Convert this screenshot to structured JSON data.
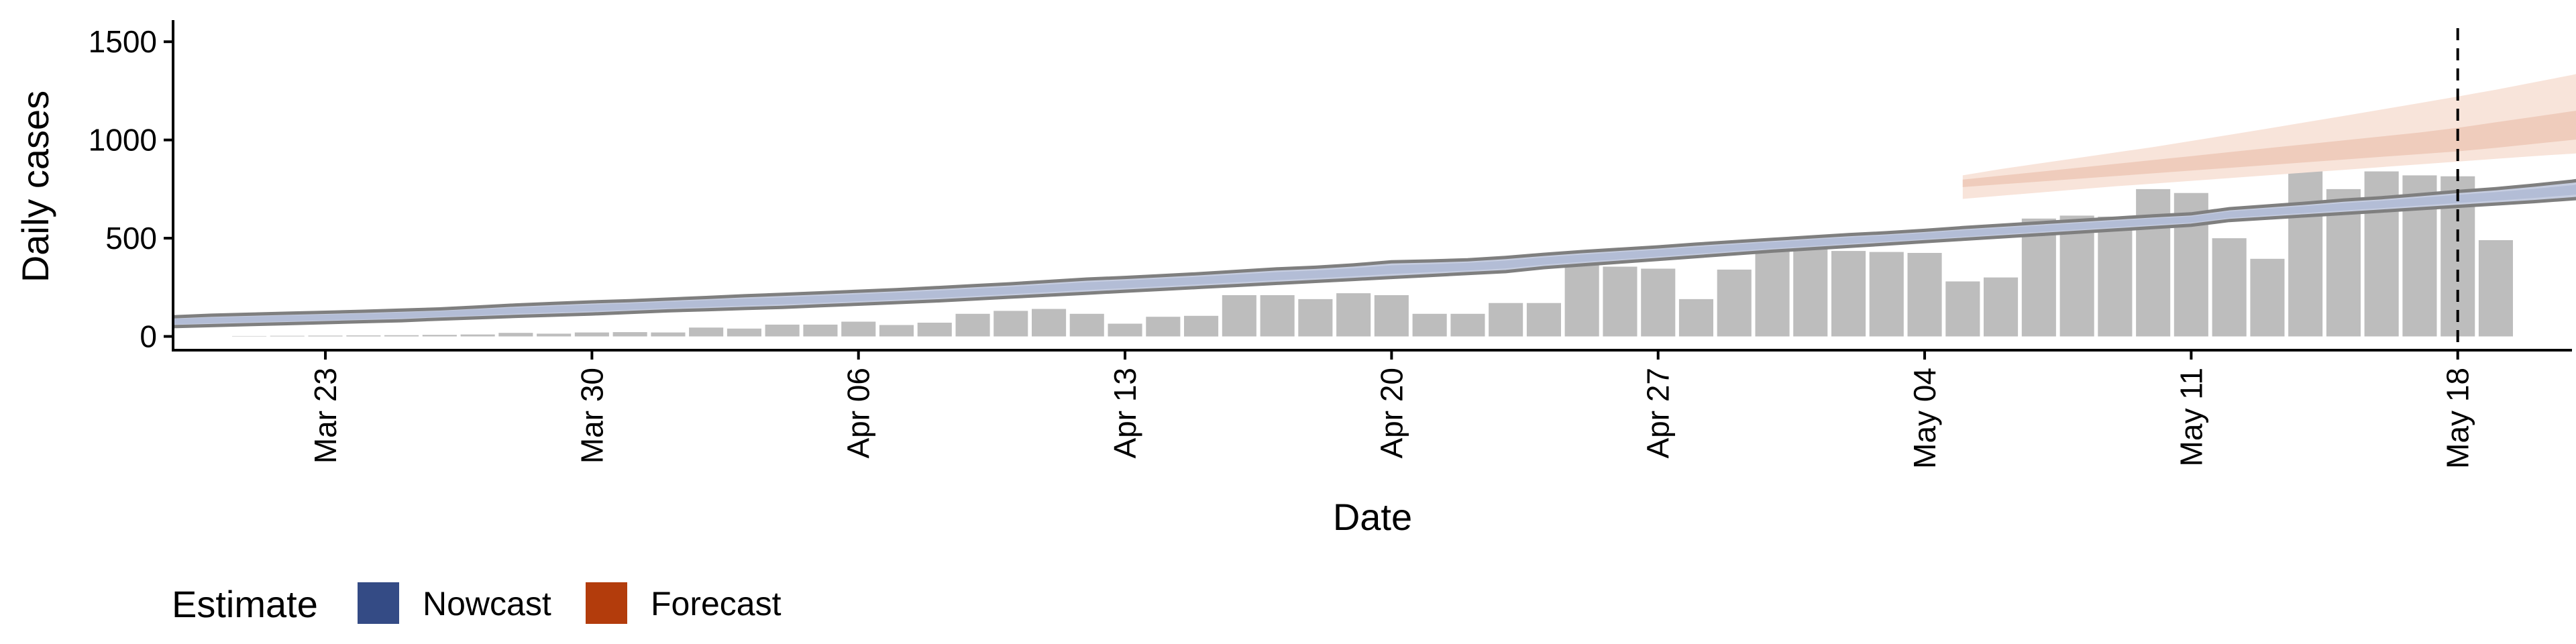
{
  "chart_data": {
    "type": "bar",
    "xlabel": "Date",
    "ylabel": "Daily cases",
    "x_range": [
      "2020-03-19",
      "2020-05-21"
    ],
    "ylim": [
      -70,
      1610
    ],
    "y_ticks": [
      0,
      500,
      1000,
      1500
    ],
    "x_ticks": [
      {
        "date": "2020-03-23",
        "label": "Mar 23"
      },
      {
        "date": "2020-03-30",
        "label": "Mar 30"
      },
      {
        "date": "2020-04-06",
        "label": "Apr 06"
      },
      {
        "date": "2020-04-13",
        "label": "Apr 13"
      },
      {
        "date": "2020-04-20",
        "label": "Apr 20"
      },
      {
        "date": "2020-04-27",
        "label": "Apr 27"
      },
      {
        "date": "2020-05-04",
        "label": "May 04"
      },
      {
        "date": "2020-05-11",
        "label": "May 11"
      },
      {
        "date": "2020-05-18",
        "label": "May 18"
      }
    ],
    "grid": false,
    "reference_line": {
      "date": "2020-05-18",
      "style": "dashed"
    },
    "bars": {
      "color": "#bdbdbd",
      "start_date": "2020-03-21",
      "values": [
        2,
        3,
        4,
        5,
        6,
        8,
        10,
        18,
        14,
        20,
        22,
        20,
        45,
        40,
        60,
        60,
        75,
        58,
        70,
        115,
        130,
        140,
        115,
        65,
        100,
        105,
        210,
        210,
        190,
        220,
        210,
        115,
        115,
        170,
        170,
        410,
        355,
        345,
        190,
        340,
        470,
        450,
        435,
        430,
        425,
        280,
        300,
        600,
        615,
        610,
        750,
        730,
        500,
        395,
        880,
        750,
        840,
        820,
        815,
        490
      ]
    },
    "nowcast": {
      "start_date": "2020-03-19",
      "upper": [
        100,
        108,
        113,
        118,
        123,
        128,
        134,
        140,
        150,
        160,
        168,
        176,
        182,
        190,
        198,
        207,
        214,
        222,
        230,
        238,
        248,
        258,
        268,
        280,
        292,
        300,
        310,
        320,
        332,
        344,
        352,
        364,
        380,
        384,
        390,
        402,
        418,
        432,
        444,
        456,
        470,
        482,
        494,
        506,
        518,
        528,
        540,
        554,
        566,
        578,
        590,
        602,
        614,
        624,
        650,
        664,
        678,
        694,
        706,
        722,
        738,
        752,
        770,
        790,
        815
      ],
      "lower": [
        50,
        55,
        60,
        65,
        70,
        75,
        80,
        88,
        95,
        102,
        108,
        114,
        122,
        130,
        136,
        142,
        148,
        156,
        164,
        172,
        180,
        190,
        200,
        210,
        220,
        230,
        240,
        250,
        260,
        270,
        280,
        290,
        300,
        310,
        320,
        330,
        350,
        364,
        378,
        392,
        406,
        420,
        434,
        446,
        458,
        470,
        482,
        494,
        506,
        518,
        530,
        542,
        554,
        566,
        590,
        602,
        614,
        626,
        638,
        650,
        662,
        674,
        686,
        700,
        714
      ],
      "band_color": "#c6cde0",
      "line_color": "#7f7f7f"
    },
    "forecast": {
      "start_date": "2020-05-05",
      "outer_upper": [
        820,
        852,
        880,
        908,
        936,
        964,
        995,
        1026,
        1058,
        1090,
        1122,
        1155,
        1188,
        1221,
        1256,
        1293,
        1331,
        1372,
        1408,
        1482,
        1520
      ],
      "outer_lower": [
        700,
        716,
        732,
        748,
        764,
        778,
        792,
        806,
        820,
        834,
        848,
        862,
        876,
        890,
        904,
        918,
        930,
        942,
        954,
        966,
        976
      ],
      "inner_upper": [
        798,
        818,
        838,
        858,
        878,
        898,
        918,
        938,
        958,
        978,
        998,
        1018,
        1038,
        1062,
        1090,
        1118,
        1146,
        1170,
        1198,
        1260,
        1320
      ],
      "inner_lower": [
        760,
        774,
        788,
        802,
        816,
        830,
        844,
        858,
        872,
        886,
        900,
        914,
        928,
        942,
        960,
        980,
        1000,
        1020,
        1040,
        1070,
        1100
      ],
      "outer_color": "#f8e4da",
      "inner_color": "#efccbc"
    },
    "legend": {
      "title": "Estimate",
      "position": "bottom-left",
      "items": [
        {
          "label": "Nowcast",
          "color": "#344b85"
        },
        {
          "label": "Forecast",
          "color": "#b33c0c"
        }
      ]
    }
  }
}
